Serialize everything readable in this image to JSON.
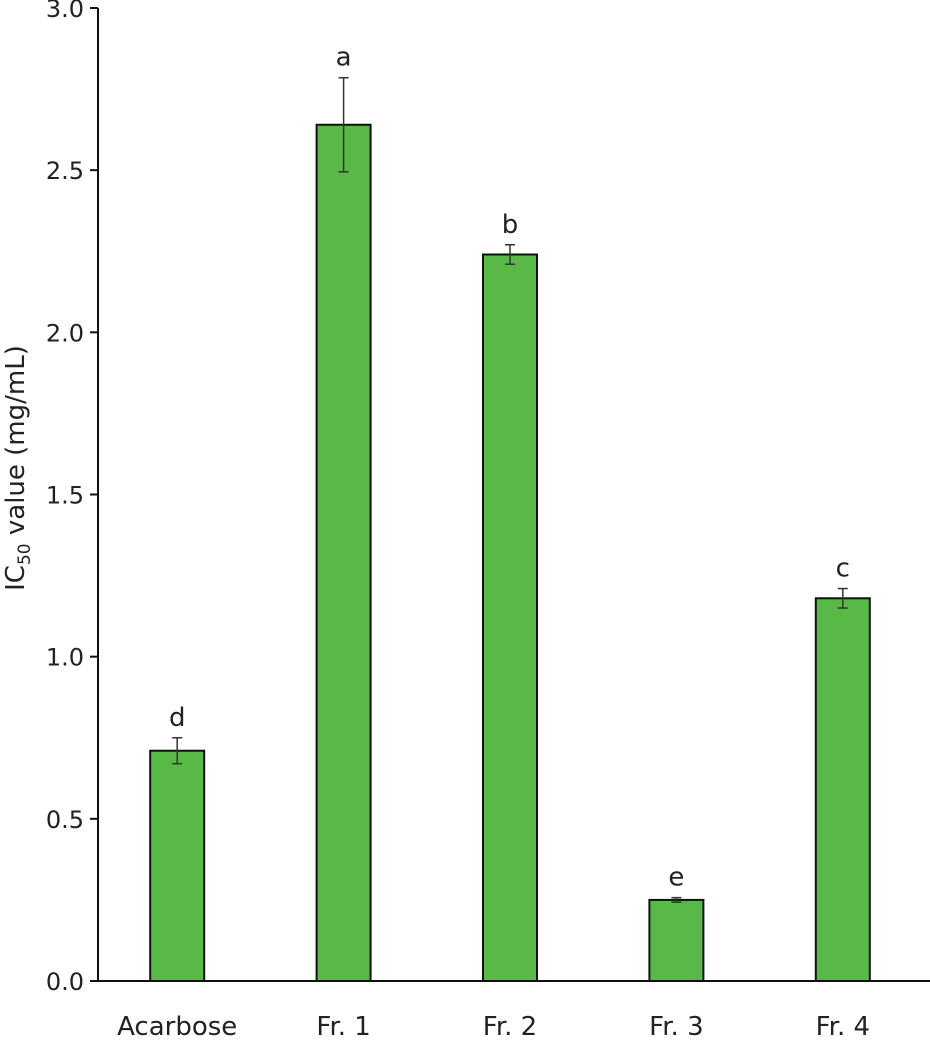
{
  "chart_data": {
    "type": "bar",
    "categories": [
      "Acarbose",
      "Fr. 1",
      "Fr. 2",
      "Fr. 3",
      "Fr. 4"
    ],
    "values": [
      0.71,
      2.64,
      2.24,
      0.25,
      1.18
    ],
    "errors": [
      0.04,
      0.145,
      0.03,
      0.007,
      0.03
    ],
    "significance_letters": [
      "d",
      "a",
      "b",
      "e",
      "c"
    ],
    "ylabel_main": "IC",
    "ylabel_sub": "50",
    "ylabel_rest": " value (mg/mL)",
    "ylim": [
      0,
      3.0
    ],
    "yticks": [
      "0.0",
      "0.5",
      "1.0",
      "1.5",
      "2.0",
      "2.5",
      "3.0"
    ],
    "grid": false,
    "colors": {
      "bar": "#58b947",
      "outline": "#111111"
    }
  }
}
